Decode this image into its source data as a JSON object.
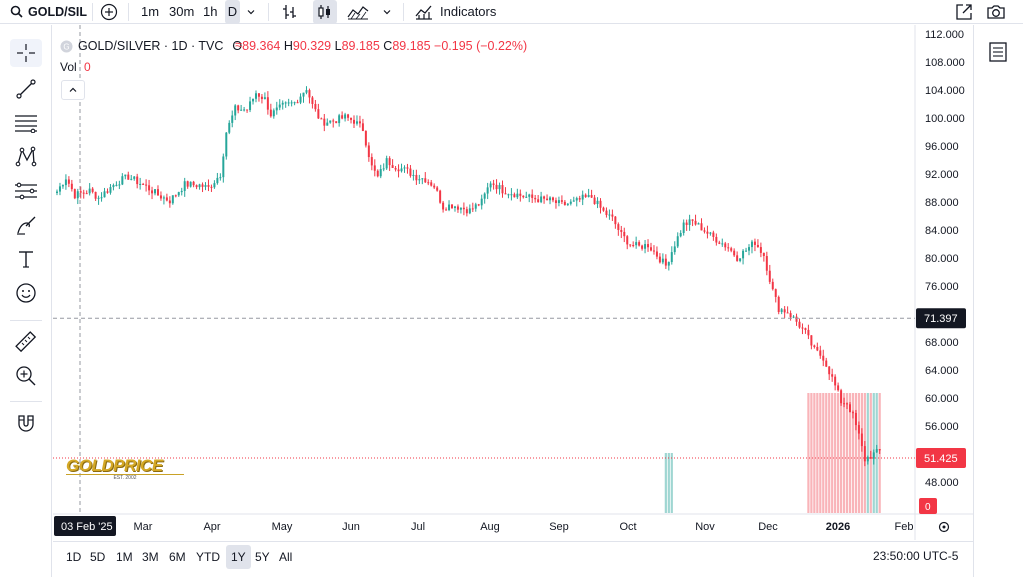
{
  "topbar": {
    "symbol": "GOLD/SIL",
    "intervals": [
      "1m",
      "30m",
      "1h",
      "D"
    ],
    "active_interval": "D",
    "indicators_label": "Indicators"
  },
  "legend": {
    "title": "GOLD/SILVER · 1D · TVC",
    "open_label": "O",
    "open": "89.364",
    "high_label": "H",
    "high": "90.329",
    "low_label": "L",
    "low": "89.185",
    "close_label": "C",
    "close": "89.185",
    "change": "−0.195 (−0.22%)",
    "vol_label": "Vol",
    "vol_value": "0"
  },
  "price_axis": {
    "ticks": [
      "112.000",
      "108.000",
      "104.000",
      "100.000",
      "96.000",
      "92.000",
      "88.000",
      "84.000",
      "80.000",
      "76.000",
      "68.000",
      "64.000",
      "60.000",
      "56.000",
      "48.000"
    ],
    "crosshair_label": "71.397",
    "last_price_label": "51.425",
    "volume_label": "0"
  },
  "time_axis": {
    "crosshair_label": "03 Feb '25",
    "labels": [
      "Mar",
      "Apr",
      "May",
      "Jun",
      "Jul",
      "Aug",
      "Sep",
      "Oct",
      "Nov",
      "Dec",
      "2026",
      "Feb"
    ]
  },
  "watermark": {
    "text": "GOLDPRICE",
    "sub": "EST. 2002"
  },
  "bottombar": {
    "ranges": [
      "1D",
      "5D",
      "1M",
      "3M",
      "6M",
      "YTD",
      "1Y",
      "5Y",
      "All"
    ],
    "active_range": "1Y",
    "clock": "23:50:00 UTC-5"
  },
  "colors": {
    "up": "#26a69a",
    "down": "#f23645",
    "up_vol": "#9fd6d2",
    "down_vol": "#f9b4b9"
  },
  "chart_data": {
    "type": "candlestick",
    "title": "GOLD/SILVER · 1D · TVC",
    "ylim": [
      44,
      113
    ],
    "yticks": [
      112,
      108,
      104,
      100,
      96,
      92,
      88,
      84,
      80,
      76,
      68,
      64,
      60,
      56,
      48
    ],
    "crosshair_y": 71.397,
    "last_price": 51.425,
    "anchors": [
      [
        0,
        89.5
      ],
      [
        3,
        91.5
      ],
      [
        6,
        89
      ],
      [
        11,
        89.6
      ],
      [
        14,
        88.6
      ],
      [
        20,
        90.8
      ],
      [
        24,
        91.6
      ],
      [
        30,
        90.2
      ],
      [
        34,
        89
      ],
      [
        38,
        88.2
      ],
      [
        43,
        90.5
      ],
      [
        48,
        90.4
      ],
      [
        51,
        90
      ],
      [
        55,
        92
      ],
      [
        57,
        98
      ],
      [
        60,
        101.3
      ],
      [
        64,
        101.2
      ],
      [
        67,
        103.6
      ],
      [
        70,
        102.7
      ],
      [
        72,
        100.5
      ],
      [
        76,
        101.7
      ],
      [
        80,
        102.2
      ],
      [
        84,
        104.3
      ],
      [
        86,
        101.8
      ],
      [
        89,
        99.4
      ],
      [
        93,
        99.6
      ],
      [
        97,
        100.1
      ],
      [
        100,
        99.6
      ],
      [
        103,
        98.4
      ],
      [
        106,
        93
      ],
      [
        108,
        91.5
      ],
      [
        111,
        93.9
      ],
      [
        114,
        93.1
      ],
      [
        118,
        92.4
      ],
      [
        121,
        91.6
      ],
      [
        124,
        91.3
      ],
      [
        127,
        90.3
      ],
      [
        130,
        87.3
      ],
      [
        133,
        87.6
      ],
      [
        136,
        87.2
      ],
      [
        139,
        86.8
      ],
      [
        143,
        88
      ],
      [
        146,
        90.9
      ],
      [
        150,
        89.7
      ],
      [
        154,
        89.2
      ],
      [
        158,
        88.7
      ],
      [
        162,
        88.4
      ],
      [
        166,
        88.2
      ],
      [
        170,
        87.6
      ],
      [
        174,
        87.9
      ],
      [
        177,
        88.5
      ],
      [
        180,
        88.7
      ],
      [
        184,
        86.6
      ],
      [
        187,
        85.6
      ],
      [
        190,
        83.3
      ],
      [
        193,
        82
      ],
      [
        196,
        81.6
      ],
      [
        199,
        81.9
      ],
      [
        202,
        80.4
      ],
      [
        205,
        78.9
      ],
      [
        208,
        82
      ],
      [
        211,
        84.8
      ],
      [
        214,
        85.2
      ],
      [
        217,
        84.3
      ],
      [
        220,
        83.2
      ],
      [
        223,
        82.4
      ],
      [
        226,
        81.5
      ],
      [
        229,
        80.1
      ],
      [
        232,
        81.1
      ],
      [
        235,
        82.3
      ],
      [
        238,
        80.4
      ],
      [
        241,
        75.3
      ],
      [
        243,
        72.8
      ],
      [
        246,
        72.3
      ],
      [
        249,
        70.9
      ],
      [
        252,
        69.3
      ],
      [
        255,
        66.8
      ],
      [
        258,
        65.8
      ],
      [
        261,
        62.8
      ],
      [
        264,
        59.5
      ],
      [
        266,
        59.3
      ],
      [
        268,
        57.4
      ],
      [
        270,
        54.6
      ],
      [
        272,
        51.2
      ],
      [
        275,
        52
      ],
      [
        277,
        52.4
      ]
    ],
    "candles": 278,
    "volume": {
      "range_start": 253,
      "range_end": 277,
      "value_max": 1
    }
  }
}
